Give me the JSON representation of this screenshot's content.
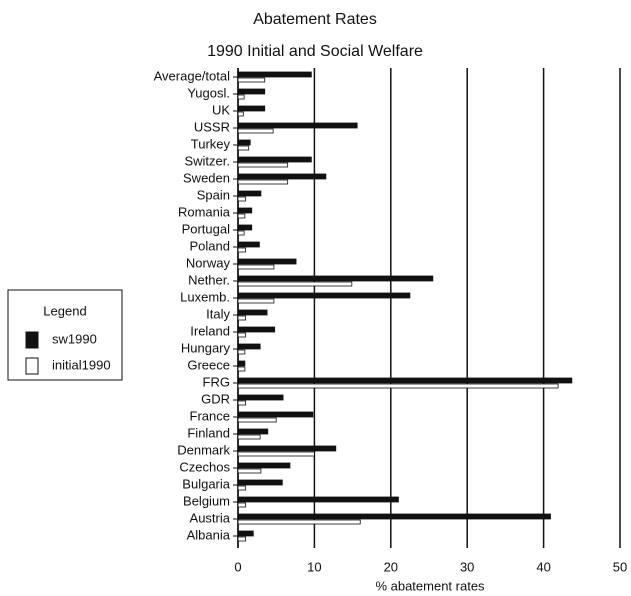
{
  "chart_data": {
    "type": "hbar",
    "title": "Abatement Rates",
    "subtitle": "1990 Initial and Social Welfare",
    "x_label": "% abatement rates",
    "legend_title": "Legend",
    "legend_position": "left",
    "grid": true,
    "categories": [
      "Average/total",
      "Yugosl.",
      "UK",
      "USSR",
      "Turkey",
      "Switzer.",
      "Sweden",
      "Spain",
      "Romania",
      "Portugal",
      "Poland",
      "Norway",
      "Nether.",
      "Luxemb.",
      "Italy",
      "Ireland",
      "Hungary",
      "Greece",
      "FRG",
      "GDR",
      "France",
      "Finland",
      "Denmark",
      "Czechos",
      "Bulgaria",
      "Belgium",
      "Austria",
      "Albania"
    ],
    "series": [
      {
        "name": "sw1990",
        "color": "#111111",
        "values": [
          9.6,
          3.5,
          3.5,
          15.6,
          1.6,
          9.6,
          11.5,
          3.0,
          1.8,
          1.8,
          2.8,
          7.6,
          25.5,
          22.5,
          3.8,
          4.8,
          2.9,
          0.9,
          43.7,
          5.9,
          9.8,
          3.9,
          12.8,
          6.8,
          5.8,
          21.0,
          40.9,
          2.0
        ]
      },
      {
        "name": "initial1990",
        "color": "#ffffff",
        "values": [
          3.5,
          0.8,
          0.7,
          4.6,
          1.4,
          6.5,
          6.5,
          1.0,
          0.9,
          0.8,
          1.0,
          4.7,
          14.9,
          4.7,
          1.0,
          1.0,
          0.9,
          0.9,
          41.9,
          1.0,
          5.0,
          2.9,
          10.0,
          3.0,
          1.0,
          1.0,
          16.0,
          1.0
        ]
      }
    ],
    "xlim": [
      0,
      50
    ],
    "xticks": [
      0,
      10,
      20,
      30,
      40,
      50
    ]
  }
}
